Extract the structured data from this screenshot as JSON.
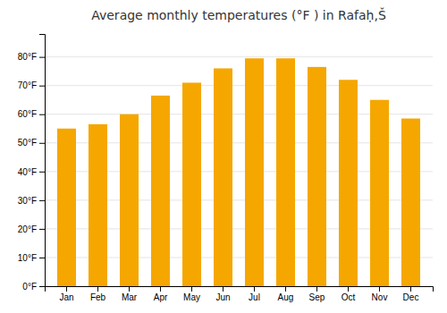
{
  "chart_data": {
    "type": "bar",
    "title": "Average monthly temperatures (°F ) in Rafaḥ,Š",
    "categories": [
      "Jan",
      "Feb",
      "Mar",
      "Apr",
      "May",
      "Jun",
      "Jul",
      "Aug",
      "Sep",
      "Oct",
      "Nov",
      "Dec"
    ],
    "values": [
      55,
      56.5,
      60,
      66.5,
      71,
      76,
      79.5,
      79.5,
      76.5,
      72,
      65,
      58.5
    ],
    "color": "#F5A700",
    "ylim": [
      0,
      88
    ],
    "yticks": [
      {
        "value": 0,
        "label": "0°F"
      },
      {
        "value": 10,
        "label": "10°F"
      },
      {
        "value": 20,
        "label": "20°F"
      },
      {
        "value": 30,
        "label": "30°F"
      },
      {
        "value": 40,
        "label": "40°F"
      },
      {
        "value": 50,
        "label": "50°F"
      },
      {
        "value": 60,
        "label": "60°F"
      },
      {
        "value": 70,
        "label": "70°F"
      },
      {
        "value": 80,
        "label": "80°F"
      }
    ],
    "grid": true
  }
}
